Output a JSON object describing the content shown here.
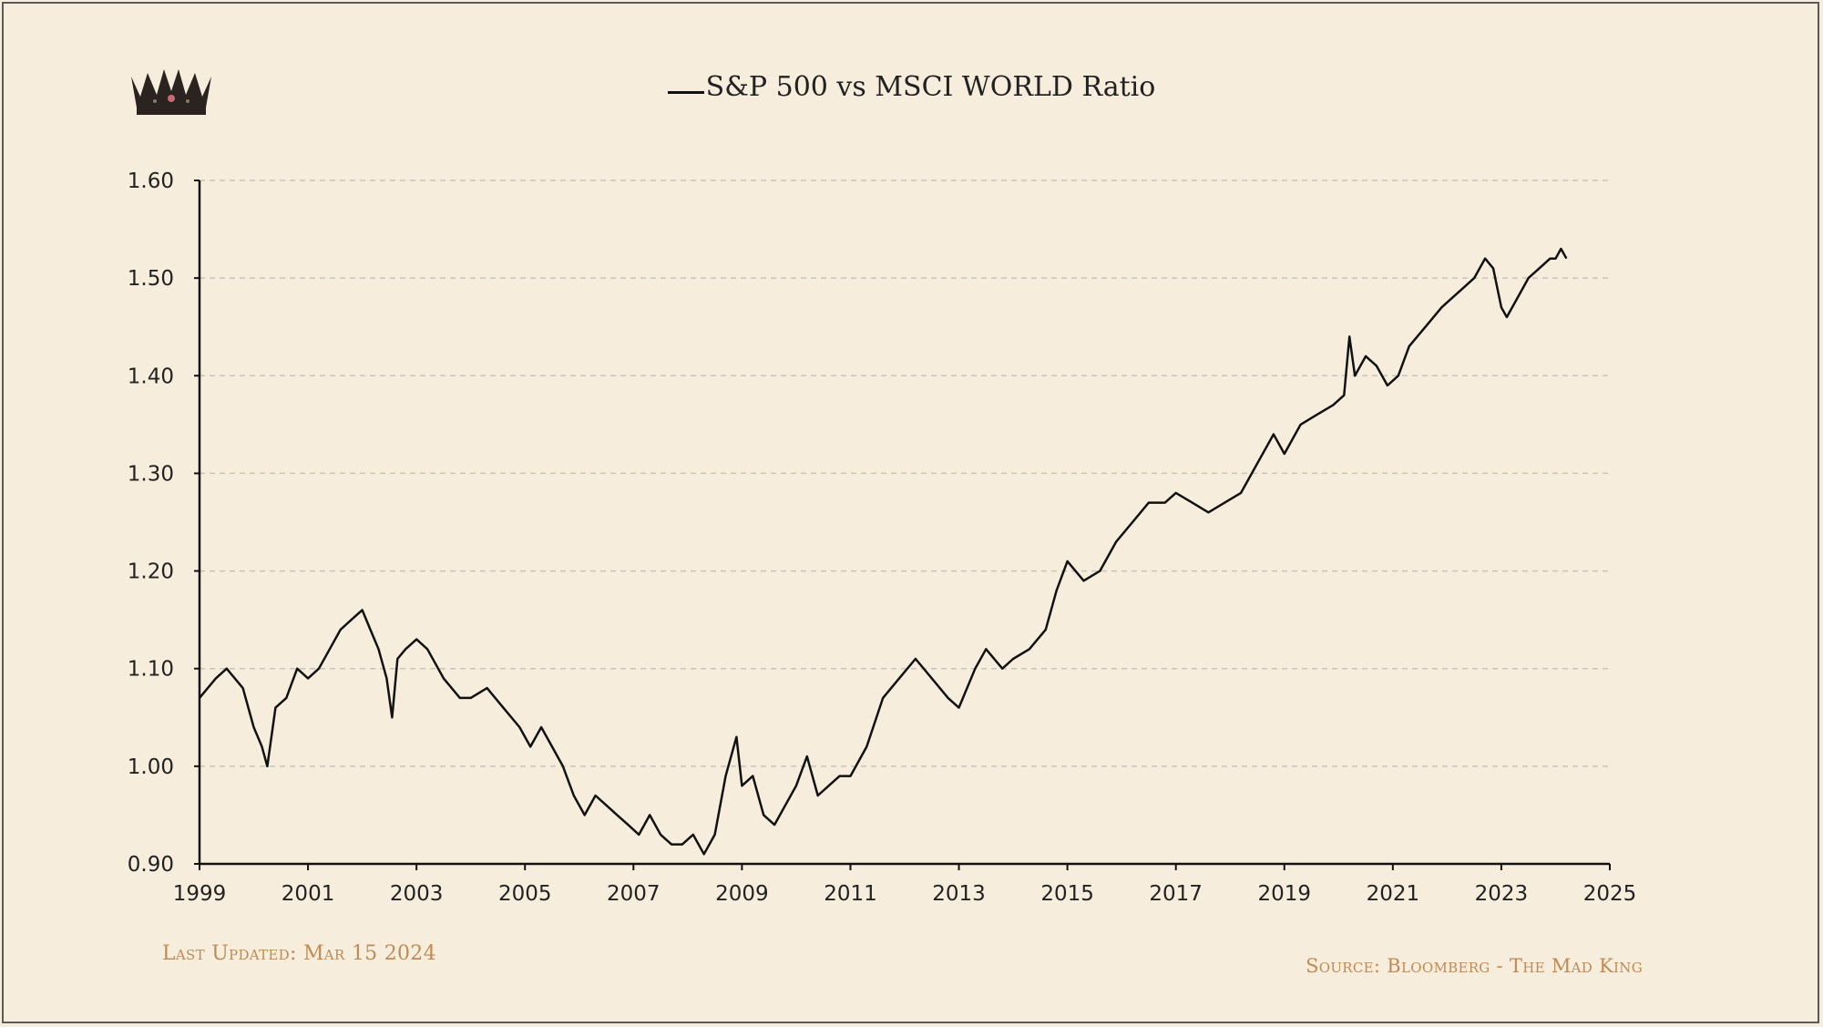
{
  "legend": {
    "series_name": "S&P 500 vs MSCI WORLD Ratio"
  },
  "logo": {
    "icon": "crown-icon"
  },
  "footer": {
    "last_updated": "Last Updated: Mar 15 2024",
    "source": "Source: Bloomberg - The Mad King"
  },
  "colors": {
    "background": "#f7eddd",
    "line": "#111111",
    "footer_text": "#c08a52",
    "grid": "#c9c4bb"
  },
  "chart_data": {
    "type": "line",
    "title": "",
    "xlabel": "",
    "ylabel": "",
    "xlim": [
      1999,
      2025
    ],
    "ylim": [
      0.9,
      1.6
    ],
    "grid": "horizontal dashed",
    "legend_placement": "top-center",
    "x_ticks": [
      "1999",
      "2001",
      "2003",
      "2005",
      "2007",
      "2009",
      "2011",
      "2013",
      "2015",
      "2017",
      "2019",
      "2021",
      "2023",
      "2025"
    ],
    "y_ticks": [
      "0.90",
      "1.00",
      "1.10",
      "1.20",
      "1.30",
      "1.40",
      "1.50",
      "1.60"
    ],
    "series": [
      {
        "name": "S&P 500 vs MSCI WORLD Ratio",
        "x": [
          1999.0,
          1999.3,
          1999.5,
          1999.8,
          2000.0,
          2000.15,
          2000.25,
          2000.4,
          2000.6,
          2000.8,
          2001.0,
          2001.2,
          2001.4,
          2001.6,
          2001.8,
          2002.0,
          2002.15,
          2002.3,
          2002.45,
          2002.55,
          2002.65,
          2002.8,
          2003.0,
          2003.2,
          2003.5,
          2003.8,
          2004.0,
          2004.3,
          2004.6,
          2004.9,
          2005.1,
          2005.3,
          2005.5,
          2005.7,
          2005.9,
          2006.1,
          2006.3,
          2006.5,
          2006.7,
          2006.9,
          2007.1,
          2007.3,
          2007.5,
          2007.7,
          2007.9,
          2008.1,
          2008.3,
          2008.5,
          2008.7,
          2008.9,
          2009.0,
          2009.2,
          2009.4,
          2009.6,
          2009.8,
          2010.0,
          2010.2,
          2010.4,
          2010.6,
          2010.8,
          2011.0,
          2011.3,
          2011.6,
          2011.9,
          2012.2,
          2012.5,
          2012.8,
          2013.0,
          2013.3,
          2013.5,
          2013.8,
          2014.0,
          2014.3,
          2014.6,
          2014.8,
          2015.0,
          2015.3,
          2015.6,
          2015.9,
          2016.2,
          2016.5,
          2016.8,
          2017.0,
          2017.3,
          2017.6,
          2017.9,
          2018.2,
          2018.5,
          2018.8,
          2019.0,
          2019.3,
          2019.6,
          2019.9,
          2020.1,
          2020.2,
          2020.3,
          2020.5,
          2020.7,
          2020.9,
          2021.1,
          2021.3,
          2021.6,
          2021.9,
          2022.1,
          2022.3,
          2022.5,
          2022.7,
          2022.85,
          2023.0,
          2023.1,
          2023.3,
          2023.5,
          2023.7,
          2023.9,
          2024.0,
          2024.1,
          2024.2
        ],
        "values": [
          1.07,
          1.09,
          1.1,
          1.08,
          1.04,
          1.02,
          1.0,
          1.06,
          1.07,
          1.1,
          1.09,
          1.1,
          1.12,
          1.14,
          1.15,
          1.16,
          1.14,
          1.12,
          1.09,
          1.05,
          1.11,
          1.12,
          1.13,
          1.12,
          1.09,
          1.07,
          1.07,
          1.08,
          1.06,
          1.04,
          1.02,
          1.04,
          1.02,
          1.0,
          0.97,
          0.95,
          0.97,
          0.96,
          0.95,
          0.94,
          0.93,
          0.95,
          0.93,
          0.92,
          0.92,
          0.93,
          0.91,
          0.93,
          0.99,
          1.03,
          0.98,
          0.99,
          0.95,
          0.94,
          0.96,
          0.98,
          1.01,
          0.97,
          0.98,
          0.99,
          0.99,
          1.02,
          1.07,
          1.09,
          1.11,
          1.09,
          1.07,
          1.06,
          1.1,
          1.12,
          1.1,
          1.11,
          1.12,
          1.14,
          1.18,
          1.21,
          1.19,
          1.2,
          1.23,
          1.25,
          1.27,
          1.27,
          1.28,
          1.27,
          1.26,
          1.27,
          1.28,
          1.31,
          1.34,
          1.32,
          1.35,
          1.36,
          1.37,
          1.38,
          1.44,
          1.4,
          1.42,
          1.41,
          1.39,
          1.4,
          1.43,
          1.45,
          1.47,
          1.48,
          1.49,
          1.5,
          1.52,
          1.51,
          1.47,
          1.46,
          1.48,
          1.5,
          1.51,
          1.52,
          1.52,
          1.53,
          1.52
        ]
      }
    ]
  }
}
